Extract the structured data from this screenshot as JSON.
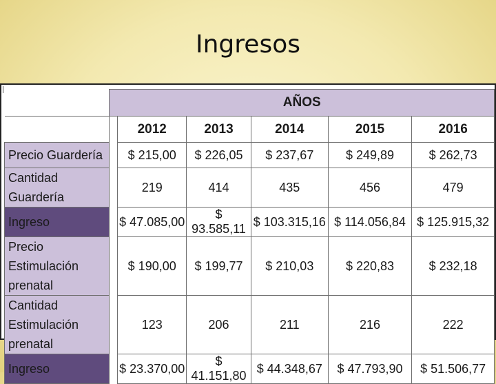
{
  "title": "Ingresos",
  "table": {
    "group_header": "AÑOS",
    "years": [
      "2012",
      "2013",
      "2014",
      "2015",
      "2016"
    ],
    "rows": [
      {
        "label": "Precio Guardería",
        "style": "light",
        "values": [
          "$ 215,00",
          "$ 226,05",
          "$ 237,67",
          "$ 249,89",
          "$ 262,73"
        ]
      },
      {
        "label": "Cantidad Guardería",
        "style": "light",
        "values": [
          "219",
          "414",
          "435",
          "456",
          "479"
        ]
      },
      {
        "label": "Ingreso",
        "style": "dark",
        "values": [
          "$ 47.085,00",
          "$ 93.585,11",
          "$ 103.315,16",
          "$ 114.056,84",
          "$ 125.915,32"
        ]
      },
      {
        "label": "Precio Estimulación prenatal",
        "style": "light",
        "values": [
          "$ 190,00",
          "$ 199,77",
          "$ 210,03",
          "$ 220,83",
          "$ 232,18"
        ]
      },
      {
        "label": "Cantidad Estimulación prenatal",
        "style": "light",
        "values": [
          "123",
          "206",
          "211",
          "216",
          "222"
        ]
      },
      {
        "label": "Ingreso",
        "style": "dark",
        "values": [
          "$ 23.370,00",
          "$ 41.151,80",
          "$ 44.348,67",
          "$ 47.793,90",
          "$ 51.506,77"
        ]
      }
    ]
  }
}
